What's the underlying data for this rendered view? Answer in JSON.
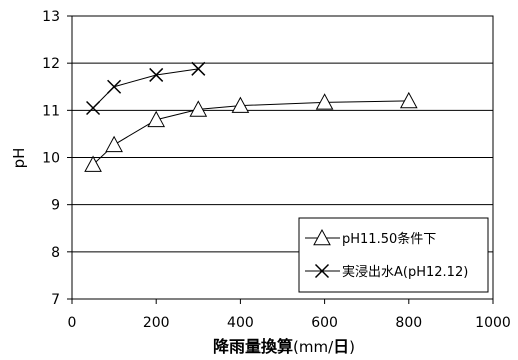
{
  "chart_data": {
    "type": "line",
    "xlabel_bold": "降雨量換算",
    "xlabel_unit_prefix": "(mm/",
    "xlabel_unit_bold": "日",
    "xlabel_unit_suffix": ")",
    "ylabel": "pH",
    "xlim": [
      0,
      1000
    ],
    "ylim": [
      7,
      13
    ],
    "xticks": [
      "0",
      "200",
      "400",
      "600",
      "800",
      "1000"
    ],
    "yticks": [
      "7",
      "8",
      "9",
      "10",
      "11",
      "12",
      "13"
    ],
    "xtick_values": [
      0,
      200,
      400,
      600,
      800,
      1000
    ],
    "ytick_values": [
      7,
      8,
      9,
      10,
      11,
      12,
      13
    ],
    "grid": "horizontal",
    "legend_position": "bottom-right",
    "series": [
      {
        "name": "pH11.50条件下",
        "marker": "triangle",
        "x": [
          50,
          100,
          200,
          300,
          400,
          600,
          800
        ],
        "y": [
          9.85,
          10.27,
          10.8,
          11.02,
          11.1,
          11.17,
          11.2
        ]
      },
      {
        "name": "実浸出水A(pH12.12)",
        "marker": "x",
        "x": [
          50,
          100,
          200,
          300
        ],
        "y": [
          11.05,
          11.5,
          11.75,
          11.88
        ]
      }
    ]
  }
}
